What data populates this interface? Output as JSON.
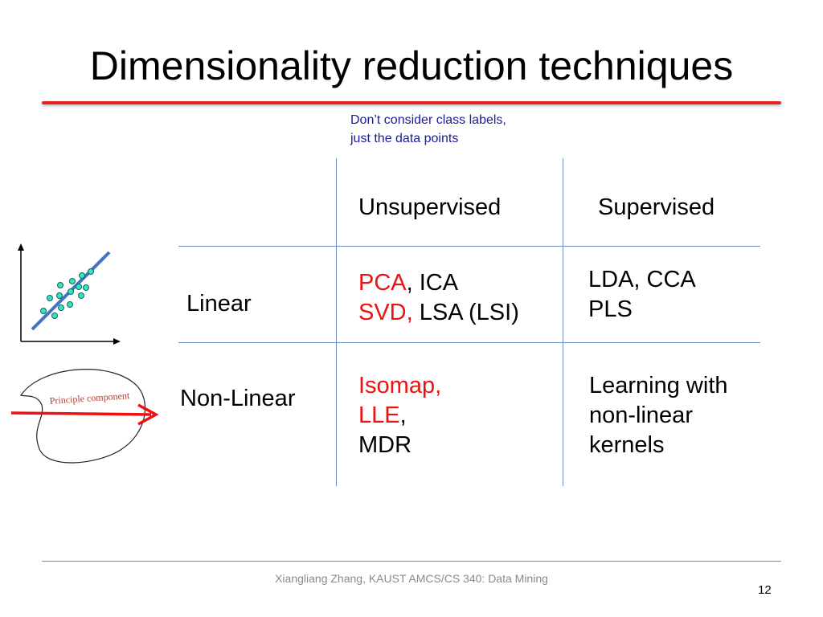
{
  "slide": {
    "title": "Dimensionality reduction techniques",
    "note_line1": "Don’t consider class labels,",
    "note_line2": "just the data points",
    "columns": {
      "unsupervised": "Unsupervised",
      "supervised": "Supervised"
    },
    "rows": {
      "linear": "Linear",
      "nonlinear": "Non-Linear"
    },
    "linear_unsupervised": {
      "pca": "PCA",
      "ica": ", ICA",
      "svd": "SVD,",
      "lsa": " LSA (LSI)"
    },
    "linear_supervised": {
      "line1": "LDA, CCA",
      "line2": "PLS"
    },
    "nonlinear_unsupervised": {
      "isomap": "Isomap,",
      "lle": "LLE",
      "lle_comma": ",",
      "mdr": "MDR"
    },
    "nonlinear_supervised": {
      "line1": "Learning with",
      "line2": "non-linear",
      "line3": "kernels"
    },
    "illustration_label": "Principle component",
    "footer": "Xiangliang Zhang, KAUST AMCS/CS 340: Data Mining",
    "page_number": "12"
  },
  "colors": {
    "accent_red": "#e32222",
    "note_blue": "#1a1a9c",
    "grid_blue": "#6a8fc8",
    "point_fill": "#2ee8c0",
    "axis_line": "#4472c4"
  }
}
